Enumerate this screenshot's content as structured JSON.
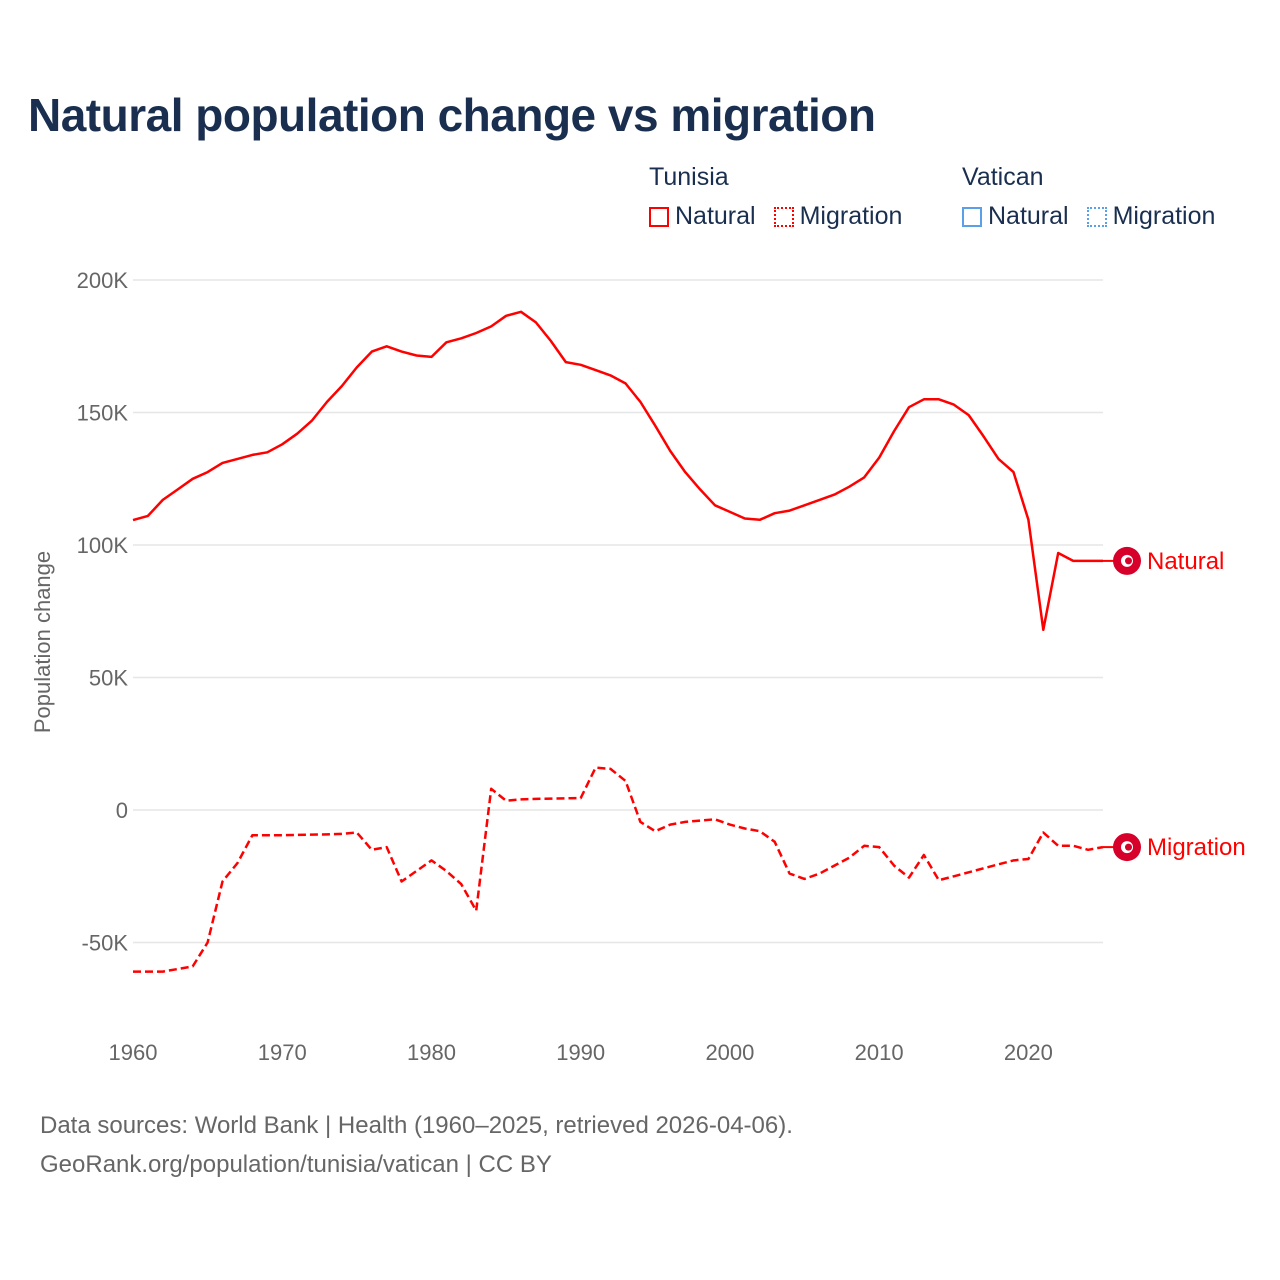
{
  "title": "Natural population change vs migration",
  "legend": {
    "groups": [
      {
        "name": "Tunisia",
        "color": "#ff0000",
        "items": [
          "Natural",
          "Migration"
        ]
      },
      {
        "name": "Vatican",
        "color": "#5aa0e8",
        "items": [
          "Natural",
          "Migration"
        ]
      }
    ]
  },
  "footer": {
    "line1": "Data sources: World Bank | Health (1960–2025, retrieved 2026-04-06).",
    "line2": "GeoRank.org/population/tunisia/vatican | CC BY"
  },
  "chart_data": {
    "type": "line",
    "title": "Natural population change vs migration",
    "xlabel": "",
    "ylabel": "Population change",
    "xlim": [
      1960,
      2025
    ],
    "ylim": [
      -75000,
      210000
    ],
    "x_ticks": [
      1960,
      1970,
      1980,
      1990,
      2000,
      2010,
      2020
    ],
    "y_ticks": [
      {
        "v": -50000,
        "label": "-50K"
      },
      {
        "v": 0,
        "label": "0"
      },
      {
        "v": 50000,
        "label": "50K"
      },
      {
        "v": 100000,
        "label": "100K"
      },
      {
        "v": 150000,
        "label": "150K"
      },
      {
        "v": 200000,
        "label": "200K"
      }
    ],
    "grid": true,
    "legend_position": "top-right",
    "x": [
      1960,
      1961,
      1962,
      1963,
      1964,
      1965,
      1966,
      1967,
      1968,
      1969,
      1970,
      1971,
      1972,
      1973,
      1974,
      1975,
      1976,
      1977,
      1978,
      1979,
      1980,
      1981,
      1982,
      1983,
      1984,
      1985,
      1986,
      1987,
      1988,
      1989,
      1990,
      1991,
      1992,
      1993,
      1994,
      1995,
      1996,
      1997,
      1998,
      1999,
      2000,
      2001,
      2002,
      2003,
      2004,
      2005,
      2006,
      2007,
      2008,
      2009,
      2010,
      2011,
      2012,
      2013,
      2014,
      2015,
      2016,
      2017,
      2018,
      2019,
      2020,
      2021,
      2022,
      2023,
      2024,
      2025
    ],
    "series": [
      {
        "name": "Tunisia Natural",
        "end_label": "Natural",
        "color": "#ff0000",
        "dash": "solid",
        "values": [
          109400,
          111000,
          117000,
          121000,
          125000,
          127500,
          131000,
          132500,
          134000,
          135000,
          138000,
          142000,
          147000,
          154000,
          160000,
          167000,
          173000,
          175000,
          173000,
          171500,
          171000,
          176500,
          178000,
          180000,
          182500,
          186500,
          188000,
          184000,
          177000,
          169000,
          168000,
          166000,
          164000,
          161000,
          154000,
          145000,
          135500,
          127500,
          121000,
          115000,
          112500,
          110000,
          109500,
          112000,
          113000,
          115000,
          117000,
          119000,
          122000,
          125500,
          133000,
          143000,
          152000,
          155000,
          155000,
          153000,
          149000,
          141000,
          132500,
          127500,
          109500,
          68000,
          97000,
          94000,
          94000,
          94000
        ]
      },
      {
        "name": "Tunisia Migration",
        "end_label": "Migration",
        "color": "#ff0000",
        "dash": "dashed",
        "values": [
          -61000,
          -61000,
          -61000,
          -60000,
          -59000,
          -50000,
          -27000,
          -20000,
          -9500,
          -9500,
          -9500,
          -9400,
          -9300,
          -9200,
          -9000,
          -8500,
          -15000,
          -14000,
          -27000,
          -23000,
          -19000,
          -23000,
          -28000,
          -38000,
          8000,
          3500,
          4000,
          4200,
          4300,
          4400,
          4500,
          16000,
          15500,
          11000,
          -4500,
          -8000,
          -5500,
          -4500,
          -4000,
          -3500,
          -5500,
          -7000,
          -8000,
          -12000,
          -24000,
          -26000,
          -24000,
          -21000,
          -18000,
          -13500,
          -14000,
          -21000,
          -25500,
          -17000,
          -26500,
          -25000,
          -23500,
          -22000,
          -20500,
          -19000,
          -18500,
          -8500,
          -13500,
          -13500,
          -15000,
          -14000
        ]
      }
    ]
  }
}
